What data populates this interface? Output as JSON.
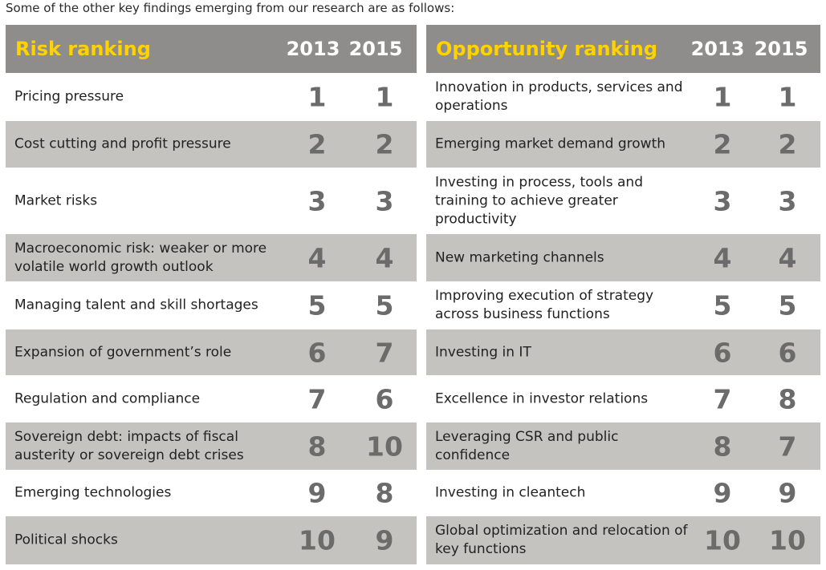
{
  "intro": "Some of the other key findings emerging from our research are as follows:",
  "colors": {
    "header_bg": "#8e8d8b",
    "title": "#ffd200",
    "shade": "#c4c3bf",
    "number": "#6b6b6b"
  },
  "risk": {
    "title": "Risk ranking",
    "year1": "2013",
    "year2": "2015",
    "rows": [
      {
        "label": "Pricing pressure",
        "y2013": "1",
        "y2015": "1"
      },
      {
        "label": "Cost cutting and profit pressure",
        "y2013": "2",
        "y2015": "2"
      },
      {
        "label": "Market risks",
        "y2013": "3",
        "y2015": "3"
      },
      {
        "label": "Macroeconomic risk: weaker or more volatile world growth outlook",
        "y2013": "4",
        "y2015": "4"
      },
      {
        "label": "Managing talent and skill shortages",
        "y2013": "5",
        "y2015": "5"
      },
      {
        "label": "Expansion of government’s role",
        "y2013": "6",
        "y2015": "7"
      },
      {
        "label": "Regulation and compliance",
        "y2013": "7",
        "y2015": "6"
      },
      {
        "label": "Sovereign debt: impacts of fiscal austerity or sovereign debt crises",
        "y2013": "8",
        "y2015": "10"
      },
      {
        "label": "Emerging technologies",
        "y2013": "9",
        "y2015": "8"
      },
      {
        "label": "Political shocks",
        "y2013": "10",
        "y2015": "9"
      }
    ]
  },
  "opportunity": {
    "title": "Opportunity ranking",
    "year1": "2013",
    "year2": "2015",
    "rows": [
      {
        "label": "Innovation in products, services and operations",
        "y2013": "1",
        "y2015": "1"
      },
      {
        "label": "Emerging market demand growth",
        "y2013": "2",
        "y2015": "2"
      },
      {
        "label": "Investing in process, tools and training to achieve greater productivity",
        "y2013": "3",
        "y2015": "3"
      },
      {
        "label": "New marketing channels",
        "y2013": "4",
        "y2015": "4"
      },
      {
        "label": "Improving execution of strategy across business functions",
        "y2013": "5",
        "y2015": "5"
      },
      {
        "label": "Investing in IT",
        "y2013": "6",
        "y2015": "6"
      },
      {
        "label": "Excellence in investor relations",
        "y2013": "7",
        "y2015": "8"
      },
      {
        "label": "Leveraging CSR and public confidence",
        "y2013": "8",
        "y2015": "7"
      },
      {
        "label": "Investing in cleantech",
        "y2013": "9",
        "y2015": "9"
      },
      {
        "label": "Global optimization and relocation of key functions",
        "y2013": "10",
        "y2015": "10"
      }
    ]
  }
}
